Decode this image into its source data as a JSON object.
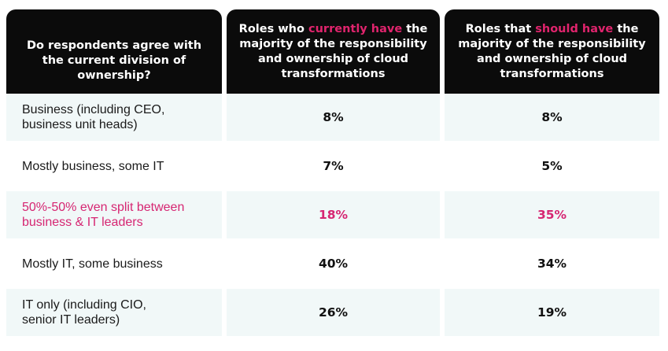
{
  "header": {
    "col1": "Do respondents agree with the current division of ownership?",
    "col2_pre": "Roles who ",
    "col2_highlight": "currently have",
    "col2_post": " the majority of the responsibility and ownership of cloud transformations",
    "col3_pre": "Roles that ",
    "col3_highlight": "should have",
    "col3_post": " the majority of the responsibility and ownership of cloud transformations"
  },
  "rows": [
    {
      "label_line1": "Business (including CEO,",
      "label_line2": "business unit heads)",
      "current": "8%",
      "should": "8%"
    },
    {
      "label_line1": "Mostly business, some IT",
      "label_line2": "",
      "current": "7%",
      "should": "5%"
    },
    {
      "label_line1": "50%-50% even split between",
      "label_line2": "business & IT leaders",
      "current": "18%",
      "should": "35%"
    },
    {
      "label_line1": "Mostly IT, some business",
      "label_line2": "",
      "current": "40%",
      "should": "34%"
    },
    {
      "label_line1": "IT only (including CIO,",
      "label_line2": "senior IT leaders)",
      "current": "26%",
      "should": "19%"
    }
  ],
  "colors": {
    "header_bg": "#0b0b0b",
    "highlight": "#e0246d",
    "row_tint": "#f1f8f8"
  }
}
